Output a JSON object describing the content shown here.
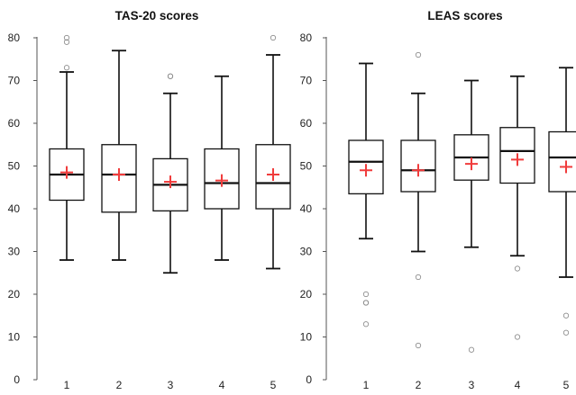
{
  "chart_data": [
    {
      "type": "box",
      "title": "TAS-20 scores",
      "categories": [
        "1",
        "2",
        "3",
        "4",
        "5"
      ],
      "ylim": [
        0,
        80
      ],
      "yticks": [
        0,
        10,
        20,
        30,
        40,
        50,
        60,
        70,
        80
      ],
      "mean_color": "#f03c3c",
      "boxes": [
        {
          "category": "1",
          "whisker_low": 28,
          "q1": 42,
          "median": 48,
          "q3": 54,
          "whisker_high": 72,
          "mean": 48.5,
          "outliers": [
            73,
            79,
            80
          ]
        },
        {
          "category": "2",
          "whisker_low": 28,
          "q1": 39.2,
          "median": 48,
          "q3": 55,
          "whisker_high": 77,
          "mean": 48,
          "outliers": []
        },
        {
          "category": "3",
          "whisker_low": 25,
          "q1": 39.5,
          "median": 45.6,
          "q3": 51.7,
          "whisker_high": 67,
          "mean": 46.3,
          "outliers": [
            71,
            71
          ]
        },
        {
          "category": "4",
          "whisker_low": 28,
          "q1": 40,
          "median": 46,
          "q3": 54,
          "whisker_high": 71,
          "mean": 46.6,
          "outliers": []
        },
        {
          "category": "5",
          "whisker_low": 26,
          "q1": 40,
          "median": 46,
          "q3": 55,
          "whisker_high": 76,
          "mean": 48,
          "outliers": [
            80
          ]
        }
      ]
    },
    {
      "type": "box",
      "title": "LEAS scores",
      "categories": [
        "1",
        "2",
        "3",
        "4",
        "5"
      ],
      "ylim": [
        0,
        80
      ],
      "yticks": [
        0,
        10,
        20,
        30,
        40,
        50,
        60,
        70,
        80
      ],
      "mean_color": "#f03c3c",
      "boxes": [
        {
          "category": "1",
          "whisker_low": 33,
          "q1": 43.5,
          "median": 51,
          "q3": 56,
          "whisker_high": 74,
          "mean": 49,
          "outliers": [
            20,
            18,
            18,
            13
          ]
        },
        {
          "category": "2",
          "whisker_low": 30,
          "q1": 44,
          "median": 49,
          "q3": 56,
          "whisker_high": 67,
          "mean": 49,
          "outliers": [
            76,
            24,
            8
          ]
        },
        {
          "category": "3",
          "whisker_low": 31,
          "q1": 46.7,
          "median": 52,
          "q3": 57.3,
          "whisker_high": 70,
          "mean": 50.5,
          "outliers": [
            7
          ]
        },
        {
          "category": "4",
          "whisker_low": 29,
          "q1": 46,
          "median": 53.5,
          "q3": 59,
          "whisker_high": 71,
          "mean": 51.5,
          "outliers": [
            26,
            10
          ]
        },
        {
          "category": "5",
          "whisker_low": 24,
          "q1": 44,
          "median": 52,
          "q3": 58,
          "whisker_high": 73,
          "mean": 49.8,
          "outliers": [
            15,
            11
          ]
        }
      ]
    }
  ]
}
